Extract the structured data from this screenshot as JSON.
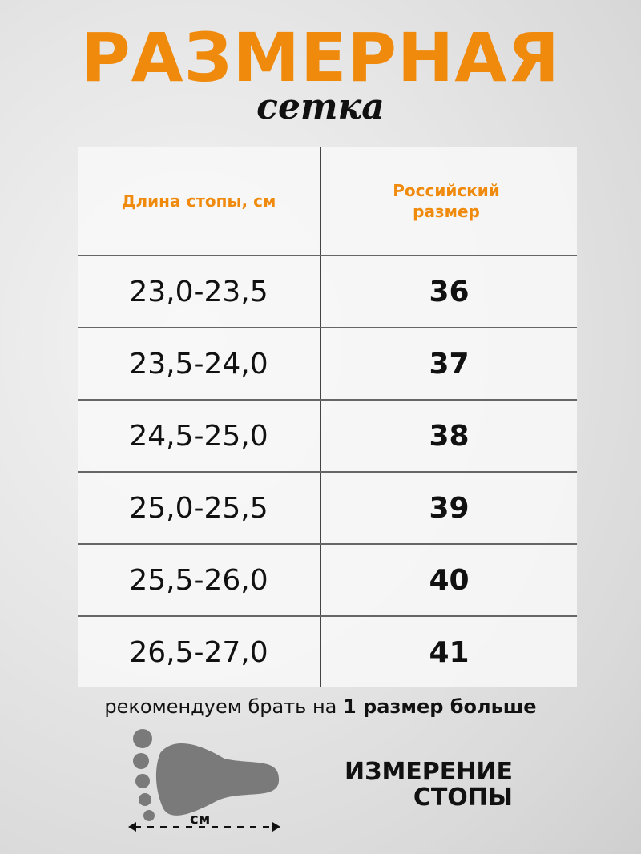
{
  "header": {
    "title": "РАЗМЕРНАЯ",
    "subtitle": "сетка"
  },
  "table": {
    "columns": [
      "Длина стопы, см",
      "Российский размер"
    ],
    "rows": [
      {
        "length": "23,0-23,5",
        "size": "36"
      },
      {
        "length": "23,5-24,0",
        "size": "37"
      },
      {
        "length": "24,5-25,0",
        "size": "38"
      },
      {
        "length": "25,0-25,5",
        "size": "39"
      },
      {
        "length": "25,5-26,0",
        "size": "40"
      },
      {
        "length": "26,5-27,0",
        "size": "41"
      }
    ]
  },
  "note": {
    "text": "рекомендуем брать на ",
    "bold": "1 размер больше"
  },
  "measure": {
    "line1": "ИЗМЕРЕНИЕ",
    "line2": "СТОПЫ",
    "unit": "см",
    "icon": "foot-icon"
  },
  "colors": {
    "accent": "#f08a0c",
    "text": "#111111",
    "foot": "#7a7a7a"
  }
}
